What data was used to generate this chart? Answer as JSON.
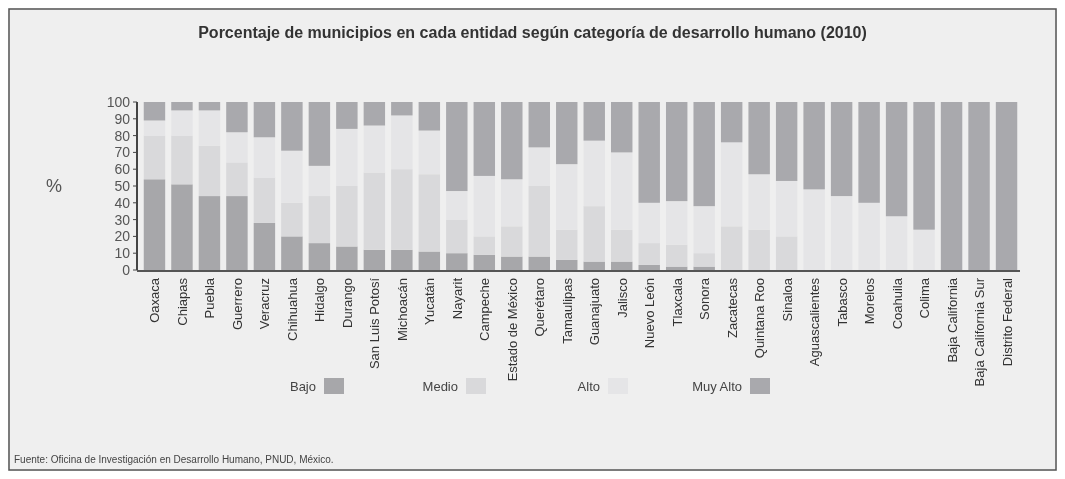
{
  "chart_data": {
    "type": "bar",
    "stacked": true,
    "title": "Porcentaje de municipios en cada entidad según categoría de desarrollo humano (2010)",
    "ylabel": "%",
    "categories": [
      "Oaxaca",
      "Chiapas",
      "Puebla",
      "Guerrero",
      "Veracruz",
      "Chihuahua",
      "Hidalgo",
      "Durango",
      "San Luis Potosí",
      "Michoacán",
      "Yucatán",
      "Nayarit",
      "Campeche",
      "Estado de México",
      "Querétaro",
      "Tamaulipas",
      "Guanajuato",
      "Jalisco",
      "Nuevo León",
      "Tlaxcala",
      "Sonora",
      "Zacatecas",
      "Quintana Roo",
      "Sinaloa",
      "Aguascalientes",
      "Tabasco",
      "Morelos",
      "Coahuila",
      "Colima",
      "Baja California",
      "Baja California Sur",
      "Distrito Federal"
    ],
    "series": [
      {
        "name": "Bajo",
        "color": "#a7a7aa",
        "values": [
          54,
          51,
          44,
          44,
          28,
          20,
          16,
          14,
          12,
          12,
          11,
          10,
          9,
          8,
          8,
          6,
          5,
          5,
          3,
          2,
          2,
          0,
          0,
          0,
          0,
          0,
          0,
          0,
          0,
          0,
          0,
          0
        ]
      },
      {
        "name": "Medio",
        "color": "#d9d9db",
        "values": [
          26,
          29,
          30,
          20,
          27,
          20,
          28,
          36,
          46,
          48,
          46,
          20,
          11,
          18,
          42,
          18,
          33,
          19,
          13,
          13,
          8,
          26,
          24,
          20,
          0,
          0,
          0,
          0,
          0,
          0,
          0,
          0
        ]
      },
      {
        "name": "Alto",
        "color": "#e5e5e7",
        "values": [
          9,
          15,
          21,
          18,
          24,
          31,
          18,
          34,
          28,
          32,
          26,
          17,
          36,
          28,
          23,
          39,
          39,
          46,
          24,
          26,
          28,
          50,
          33,
          33,
          48,
          44,
          40,
          32,
          24,
          0,
          0,
          0
        ]
      },
      {
        "name": "Muy Alto",
        "color": "#a9a9ad",
        "values": [
          11,
          5,
          5,
          18,
          21,
          29,
          38,
          16,
          14,
          8,
          17,
          53,
          44,
          46,
          27,
          37,
          23,
          30,
          60,
          59,
          62,
          24,
          43,
          47,
          52,
          56,
          60,
          68,
          76,
          100,
          100,
          100
        ]
      }
    ],
    "ylim": [
      0,
      100
    ],
    "yticks": [
      0,
      10,
      20,
      30,
      40,
      50,
      60,
      70,
      80,
      90,
      100
    ],
    "grid": false,
    "legend": "bottom",
    "annotations": [
      "Fuente: Oficina de Investigación en Desarrollo Humano, PNUD, México."
    ]
  }
}
